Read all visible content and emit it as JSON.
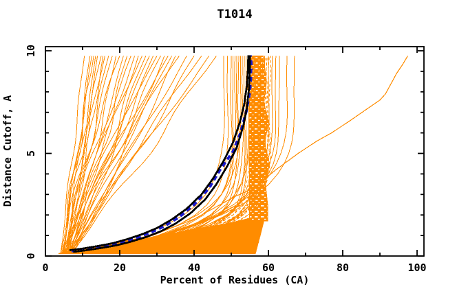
{
  "chart_data": {
    "type": "line",
    "title": "T1014",
    "xlabel": "Percent of Residues (CA)",
    "ylabel": "Distance Cutoff, A",
    "xlim": [
      0,
      102
    ],
    "ylim": [
      0,
      10.2
    ],
    "xticks_major": [
      0,
      20,
      40,
      60,
      80,
      100
    ],
    "xticks_minor": [
      10,
      30,
      50,
      70,
      90
    ],
    "yticks_major": [
      0,
      5,
      10
    ],
    "yticks_minor": [
      1,
      2,
      3,
      4,
      6,
      7,
      8,
      9
    ],
    "grid": false,
    "legend": "none",
    "frame": "full-box-with-mirrored-ticks",
    "colors": {
      "models": "#ff8c00",
      "best": "#000000",
      "reference": "#1a1acd",
      "axis": "#000000",
      "background": "#ffffff"
    },
    "y_samples": [
      0.15,
      0.5,
      1,
      1.5,
      2,
      2.5,
      3,
      3.5,
      4,
      4.5,
      5,
      5.5,
      6,
      6.5,
      7,
      7.5,
      8,
      8.5,
      9,
      9.75
    ],
    "fan_curves_params_x0_xtop_p_wA_wF_ph": [
      [
        4,
        10.5,
        1.0,
        0.4,
        1.3,
        0.5
      ],
      [
        4.5,
        12,
        0.9,
        0.6,
        1.1,
        1.2
      ],
      [
        5,
        12.5,
        1.15,
        0.5,
        0.9,
        2.1
      ],
      [
        4,
        13,
        1.0,
        0.8,
        1.4,
        0.3
      ],
      [
        5.5,
        13.5,
        0.85,
        0.4,
        1.0,
        2.8
      ],
      [
        6,
        14,
        1.2,
        0.7,
        0.8,
        1.7
      ],
      [
        4.2,
        15,
        1.0,
        0.9,
        1.2,
        0.9
      ],
      [
        5,
        15.5,
        0.8,
        0.5,
        1.5,
        2.4
      ],
      [
        6.5,
        16,
        1.3,
        0.6,
        0.7,
        0.2
      ],
      [
        4.8,
        17,
        0.95,
        1.0,
        1.1,
        1.5
      ],
      [
        5.2,
        18,
        1.1,
        0.7,
        0.9,
        2.9
      ],
      [
        6,
        19,
        0.85,
        0.5,
        1.3,
        0.7
      ],
      [
        4.5,
        20,
        1.25,
        0.9,
        1.0,
        1.9
      ],
      [
        5.8,
        21,
        1.0,
        0.6,
        0.8,
        2.6
      ],
      [
        6.2,
        22,
        0.9,
        1.1,
        1.2,
        0.4
      ],
      [
        4.6,
        23,
        1.15,
        0.8,
        0.9,
        1.1
      ],
      [
        5.4,
        24,
        1.0,
        0.5,
        1.4,
        2.2
      ],
      [
        6.8,
        25,
        0.8,
        0.9,
        1.0,
        3.0
      ],
      [
        5,
        26,
        1.2,
        0.7,
        0.7,
        0.8
      ],
      [
        5.6,
        27,
        0.95,
        1.0,
        1.1,
        1.6
      ],
      [
        6.4,
        28,
        1.1,
        0.6,
        0.9,
        2.5
      ],
      [
        4.9,
        29,
        0.9,
        0.8,
        1.2,
        0.1
      ],
      [
        5.3,
        30,
        1.25,
        0.5,
        0.8,
        1.4
      ],
      [
        6.1,
        31,
        1.0,
        1.1,
        1.0,
        2.0
      ],
      [
        5.7,
        32,
        0.85,
        0.7,
        1.3,
        2.7
      ],
      [
        4.7,
        33,
        1.15,
        0.9,
        0.9,
        0.6
      ],
      [
        5.9,
        34,
        1.0,
        0.6,
        1.1,
        1.8
      ],
      [
        6.6,
        35,
        0.9,
        1.0,
        0.8,
        2.3
      ],
      [
        5.1,
        36,
        1.2,
        0.7,
        1.2,
        1.0
      ],
      [
        6.3,
        38,
        1.0,
        0.9,
        0.9,
        0.2
      ],
      [
        5.5,
        40,
        0.9,
        1.2,
        1.0,
        1.3
      ],
      [
        6.7,
        42,
        1.1,
        0.8,
        1.1,
        2.8
      ],
      [
        5.2,
        44,
        1.0,
        1.0,
        0.9,
        0.5
      ],
      [
        6,
        46,
        0.95,
        1.2,
        1.2,
        1.7
      ]
    ],
    "cluster_curves_params_x0_xtop_q_wA_ph": [
      [
        5,
        48,
        6,
        0.5,
        0.4
      ],
      [
        6,
        49,
        7,
        0.4,
        1.2
      ],
      [
        4.5,
        50,
        8,
        0.6,
        2.0
      ],
      [
        5.5,
        50.5,
        9,
        0.3,
        2.7
      ],
      [
        6.5,
        51,
        7,
        0.5,
        0.8
      ],
      [
        4.8,
        51.5,
        10,
        0.4,
        1.6
      ],
      [
        5.2,
        52,
        8,
        0.6,
        2.4
      ],
      [
        6.2,
        52.5,
        6,
        0.3,
        0.2
      ],
      [
        4.6,
        53,
        9,
        0.5,
        1.0
      ],
      [
        5.8,
        53.5,
        11,
        0.4,
        1.8
      ],
      [
        6.4,
        54,
        8,
        0.3,
        2.6
      ],
      [
        5.1,
        54.5,
        10,
        0.5,
        0.6
      ],
      [
        4.9,
        55,
        7,
        0.4,
        1.4
      ],
      [
        5.6,
        55.5,
        9,
        0.3,
        2.2
      ],
      [
        6.1,
        56,
        11,
        0.5,
        3.0
      ],
      [
        5.3,
        57,
        8,
        0.4,
        0.9
      ],
      [
        4.7,
        58,
        10,
        0.3,
        1.7
      ],
      [
        5.9,
        59,
        9,
        0.5,
        2.5
      ],
      [
        6.3,
        60,
        7,
        0.4,
        0.3
      ],
      [
        5.4,
        61,
        6,
        0.3,
        1.1
      ],
      [
        4.8,
        62,
        5.5,
        0.5,
        1.9
      ],
      [
        5.7,
        63,
        5.5,
        0.4,
        2.8
      ],
      [
        6.0,
        65,
        5,
        0.5,
        0.7
      ],
      [
        5.2,
        67,
        5,
        0.4,
        1.5
      ]
    ],
    "band_curves_params_x0_xtop_q_ph": [
      [
        5,
        55.2,
        9,
        0.3
      ],
      [
        5.5,
        55.6,
        10,
        1.1
      ],
      [
        6,
        56.0,
        9,
        1.9
      ],
      [
        4.8,
        56.4,
        11,
        2.7
      ],
      [
        5.3,
        56.8,
        10,
        0.5
      ],
      [
        5.8,
        57.2,
        9,
        1.3
      ],
      [
        6.2,
        57.6,
        11,
        2.1
      ],
      [
        5.1,
        58.0,
        10,
        2.9
      ],
      [
        5.6,
        58.4,
        9,
        0.7
      ],
      [
        6.1,
        58.8,
        10,
        1.5
      ],
      [
        4.9,
        59.2,
        11,
        2.3
      ],
      [
        5.4,
        59.6,
        9,
        0.1
      ],
      [
        5.9,
        60.0,
        10,
        0.9
      ],
      [
        5.2,
        60.4,
        9,
        1.7
      ]
    ],
    "bottom_mass_polygon": [
      [
        3.5,
        0.12
      ],
      [
        56.5,
        0.12
      ],
      [
        57.5,
        0.8
      ],
      [
        58.5,
        1.5
      ],
      [
        59,
        1.9
      ],
      [
        57,
        1.95
      ],
      [
        53,
        1.75
      ],
      [
        48,
        1.55
      ],
      [
        43,
        1.4
      ],
      [
        38,
        1.25
      ],
      [
        33,
        1.05
      ],
      [
        28,
        0.9
      ],
      [
        23,
        0.75
      ],
      [
        18,
        0.6
      ],
      [
        13,
        0.45
      ],
      [
        8,
        0.3
      ],
      [
        4.5,
        0.18
      ]
    ],
    "band_polygon": [
      [
        54.9,
        1.7
      ],
      [
        59.8,
        1.7
      ],
      [
        59.8,
        2.5
      ],
      [
        59.2,
        3.5
      ],
      [
        60.3,
        4.5
      ],
      [
        59.0,
        5.5
      ],
      [
        60.0,
        6.5
      ],
      [
        58.8,
        7.5
      ],
      [
        59.5,
        8.5
      ],
      [
        58.6,
        9.75
      ],
      [
        55.0,
        9.75
      ],
      [
        54.8,
        6.0
      ],
      [
        54.9,
        3.0
      ]
    ],
    "best_model_upper_curve": [
      [
        6.5,
        0.28
      ],
      [
        10,
        0.36
      ],
      [
        14,
        0.48
      ],
      [
        18,
        0.62
      ],
      [
        22,
        0.82
      ],
      [
        26,
        1.06
      ],
      [
        30,
        1.36
      ],
      [
        34,
        1.78
      ],
      [
        38,
        2.3
      ],
      [
        42,
        3.0
      ],
      [
        45,
        3.75
      ],
      [
        48,
        4.65
      ],
      [
        50.5,
        5.55
      ],
      [
        52.3,
        6.5
      ],
      [
        53.5,
        7.4
      ],
      [
        54.2,
        8.3
      ],
      [
        54.5,
        9.1
      ],
      [
        54.6,
        9.78
      ]
    ],
    "best_model_lower_curve": [
      [
        7.5,
        0.2
      ],
      [
        11,
        0.28
      ],
      [
        15,
        0.39
      ],
      [
        19,
        0.52
      ],
      [
        23,
        0.7
      ],
      [
        27,
        0.92
      ],
      [
        31,
        1.2
      ],
      [
        35,
        1.58
      ],
      [
        39,
        2.08
      ],
      [
        43,
        2.76
      ],
      [
        46,
        3.5
      ],
      [
        49,
        4.4
      ],
      [
        51.5,
        5.3
      ],
      [
        53.2,
        6.3
      ],
      [
        54.2,
        7.2
      ],
      [
        54.8,
        8.2
      ],
      [
        55.0,
        9.0
      ],
      [
        55.0,
        9.78
      ]
    ],
    "reference_curve_blue_dashed": [
      [
        7,
        0.24
      ],
      [
        12,
        0.36
      ],
      [
        16,
        0.49
      ],
      [
        20,
        0.65
      ],
      [
        24,
        0.86
      ],
      [
        28,
        1.12
      ],
      [
        32,
        1.45
      ],
      [
        36,
        1.9
      ],
      [
        40,
        2.5
      ],
      [
        44,
        3.3
      ],
      [
        47,
        4.2
      ],
      [
        50.5,
        5.1
      ],
      [
        52.5,
        6.0
      ],
      [
        54.0,
        7.0
      ],
      [
        54.9,
        7.9
      ],
      [
        55.3,
        8.7
      ],
      [
        55.35,
        9.4
      ],
      [
        55.2,
        9.78
      ]
    ],
    "outlier_curve": [
      [
        5,
        0.2
      ],
      [
        10,
        0.35
      ],
      [
        18,
        0.6
      ],
      [
        26,
        0.9
      ],
      [
        33,
        1.3
      ],
      [
        40,
        1.8
      ],
      [
        46,
        2.4
      ],
      [
        51,
        2.9
      ],
      [
        56,
        3.3
      ],
      [
        62,
        4.2
      ],
      [
        68,
        5.0
      ],
      [
        73,
        5.6
      ],
      [
        77,
        6.0
      ],
      [
        82,
        6.6
      ],
      [
        86,
        7.1
      ],
      [
        90,
        7.6
      ],
      [
        91.5,
        7.9
      ],
      [
        93,
        8.4
      ],
      [
        94.5,
        8.9
      ],
      [
        96,
        9.3
      ],
      [
        97.5,
        9.75
      ]
    ]
  }
}
